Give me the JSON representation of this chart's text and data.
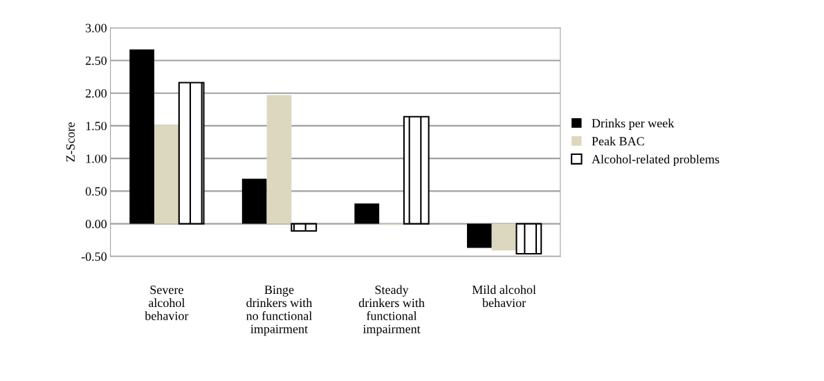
{
  "chart_data": {
    "type": "bar",
    "ylabel": "Z-Score",
    "categories": [
      "Severe\nalcohol\nbehavior",
      "Binge\ndrinkers with\nno functional\nimpairment",
      "Steady\ndrinkers with\nfunctional\nimpairment",
      "Mild alcohol\nbehavior"
    ],
    "series": [
      {
        "name": "Drinks per week",
        "color": "#000000",
        "values": [
          2.67,
          0.69,
          0.31,
          -0.37
        ]
      },
      {
        "name": "Peak BAC",
        "color": "#dcd8c0",
        "values": [
          1.52,
          1.97,
          -0.02,
          -0.41
        ]
      },
      {
        "name": "Alcohol-related problems",
        "color": "#000000",
        "values": [
          2.16,
          -0.11,
          1.64,
          -0.46
        ]
      }
    ],
    "ylim": [
      -0.5,
      3.0
    ],
    "yticks": [
      {
        "value": -0.5,
        "label": "-0.50"
      },
      {
        "value": 0,
        "label": "0.00"
      },
      {
        "value": 0.5,
        "label": "0.50"
      },
      {
        "value": 1,
        "label": "1.00"
      },
      {
        "value": 1.5,
        "label": "1.50"
      },
      {
        "value": 2,
        "label": "2.00"
      },
      {
        "value": 2.5,
        "label": "2.50"
      },
      {
        "value": 3,
        "label": "3.00"
      }
    ],
    "grid": "y",
    "legend": "right"
  }
}
